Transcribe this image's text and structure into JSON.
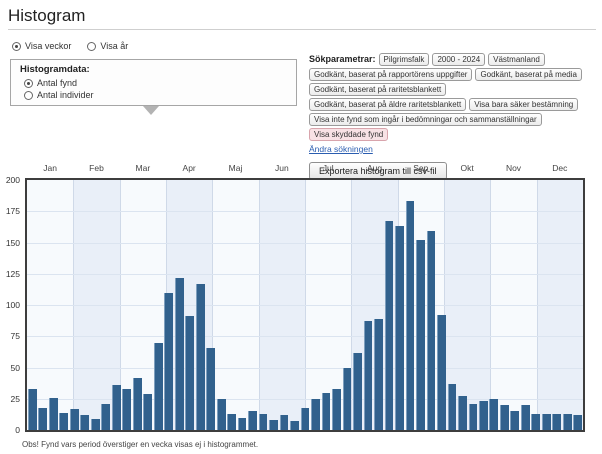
{
  "page": {
    "title": "Histogram"
  },
  "view_toggle": {
    "options": [
      {
        "label": "Visa veckor",
        "selected": true
      },
      {
        "label": "Visa år",
        "selected": false
      }
    ]
  },
  "histogramdata_box": {
    "label": "Histogramdata:",
    "options": [
      {
        "label": "Antal fynd",
        "selected": true
      },
      {
        "label": "Antal individer",
        "selected": false
      }
    ]
  },
  "search_params": {
    "label": "Sökparametrar:",
    "rows": [
      [
        {
          "text": "Pilgrimsfalk"
        },
        {
          "text": "2000 - 2024"
        },
        {
          "text": "Västmanland"
        }
      ],
      [
        {
          "text": "Godkänt, baserat på rapportörens uppgifter"
        },
        {
          "text": "Godkänt, baserat på media"
        }
      ],
      [
        {
          "text": "Godkänt, baserat på raritetsblankett"
        }
      ],
      [
        {
          "text": "Godkänt, baserat på äldre raritetsblankett"
        },
        {
          "text": "Visa bara säker bestämning"
        }
      ],
      [
        {
          "text": "Visa inte fynd som ingår i bedömningar och sammanställningar"
        }
      ],
      [
        {
          "text": "Visa skyddade fynd",
          "variant": "protected"
        }
      ]
    ],
    "change_link": "Ändra sökningen",
    "export_button": "Exportera histogram till csv-fil"
  },
  "chart_data": {
    "type": "bar",
    "x_unit": "vecka",
    "months": [
      "Jan",
      "Feb",
      "Mar",
      "Apr",
      "Maj",
      "Jun",
      "Jul",
      "Aug",
      "Sep",
      "Okt",
      "Nov",
      "Dec"
    ],
    "yticks": [
      200,
      175,
      150,
      125,
      100,
      75,
      50,
      25,
      0
    ],
    "ylim": [
      0,
      200
    ],
    "grid": true,
    "values_per_week": [
      33,
      18,
      26,
      14,
      17,
      12,
      9,
      21,
      36,
      33,
      42,
      29,
      70,
      110,
      122,
      91,
      117,
      66,
      25,
      13,
      10,
      15,
      13,
      8,
      12,
      7,
      18,
      25,
      30,
      33,
      50,
      62,
      87,
      89,
      167,
      163,
      183,
      152,
      159,
      92,
      37,
      27,
      21,
      23,
      25,
      20,
      15,
      20,
      13,
      13,
      13,
      13,
      12
    ],
    "note": "Obs! Fynd vars period överstiger en vecka visas ej i histogrammet."
  },
  "colors": {
    "bar": "#31618d",
    "bar_highlight": "#7e9fbe",
    "link": "#2a5db0",
    "protected_tag_bg": "#f8e2e5",
    "plot_bg": "#f7fafd",
    "band_bg": "#e9eff8"
  }
}
